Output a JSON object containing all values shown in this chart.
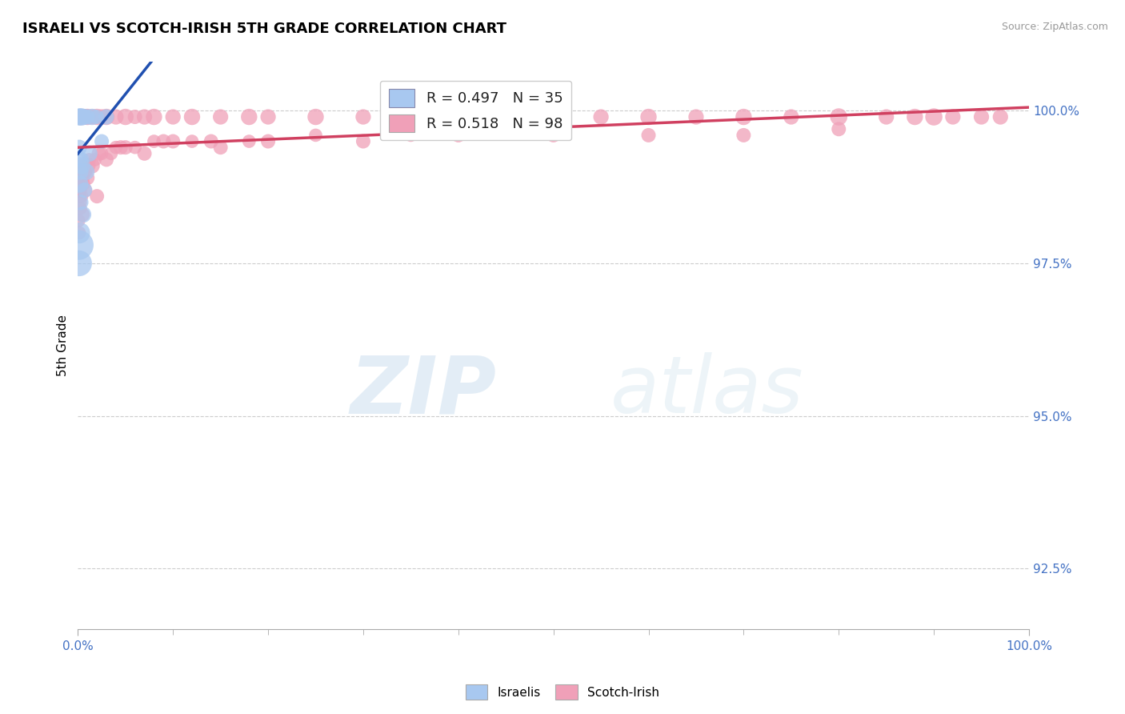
{
  "title": "ISRAELI VS SCOTCH-IRISH 5TH GRADE CORRELATION CHART",
  "source": "Source: ZipAtlas.com",
  "ylabel": "5th Grade",
  "xlim": [
    0.0,
    100.0
  ],
  "ylim": [
    91.5,
    100.8
  ],
  "yticks": [
    92.5,
    95.0,
    97.5,
    100.0
  ],
  "ytick_labels": [
    "92.5%",
    "95.0%",
    "97.5%",
    "100.0%"
  ],
  "blue_color": "#A8C8F0",
  "pink_color": "#F0A0B8",
  "blue_line_color": "#2050B0",
  "pink_line_color": "#D04060",
  "legend_R_blue": "R = 0.497",
  "legend_N_blue": "N = 35",
  "legend_R_pink": "R = 0.518",
  "legend_N_pink": "N = 98",
  "watermark_zip": "ZIP",
  "watermark_atlas": "atlas",
  "israelis_x": [
    0.05,
    0.08,
    0.1,
    0.12,
    0.15,
    0.18,
    0.2,
    0.22,
    0.25,
    0.28,
    0.3,
    0.35,
    0.4,
    0.5,
    0.6,
    0.8,
    1.0,
    1.5,
    2.0,
    3.0,
    0.1,
    0.15,
    0.2,
    0.25,
    0.3,
    0.4,
    0.55,
    0.7,
    1.2,
    2.5,
    0.08,
    0.12,
    0.18,
    0.35,
    0.9
  ],
  "israelis_y": [
    99.9,
    99.9,
    99.9,
    99.9,
    99.9,
    99.9,
    99.9,
    99.9,
    99.9,
    99.9,
    99.9,
    99.9,
    99.9,
    99.9,
    99.9,
    99.9,
    99.9,
    99.9,
    99.9,
    99.9,
    99.2,
    99.4,
    98.8,
    99.0,
    98.5,
    99.1,
    98.3,
    98.7,
    99.3,
    99.5,
    97.8,
    97.5,
    98.0,
    99.2,
    99.0
  ],
  "israelis_size": [
    15,
    12,
    18,
    14,
    16,
    12,
    20,
    14,
    16,
    12,
    18,
    20,
    16,
    14,
    18,
    14,
    16,
    18,
    14,
    16,
    18,
    16,
    20,
    18,
    16,
    20,
    18,
    16,
    18,
    14,
    60,
    45,
    30,
    16,
    18
  ],
  "scotch_x": [
    0.05,
    0.08,
    0.1,
    0.12,
    0.15,
    0.18,
    0.2,
    0.25,
    0.3,
    0.35,
    0.4,
    0.5,
    0.6,
    0.7,
    0.8,
    0.9,
    1.0,
    1.2,
    1.5,
    2.0,
    2.5,
    3.0,
    4.0,
    5.0,
    6.0,
    7.0,
    8.0,
    10.0,
    12.0,
    15.0,
    18.0,
    20.0,
    25.0,
    30.0,
    35.0,
    40.0,
    45.0,
    50.0,
    55.0,
    60.0,
    65.0,
    70.0,
    75.0,
    80.0,
    85.0,
    88.0,
    90.0,
    92.0,
    95.0,
    97.0,
    0.1,
    0.2,
    0.3,
    0.5,
    0.7,
    1.0,
    1.5,
    2.0,
    3.0,
    5.0,
    7.0,
    10.0,
    15.0,
    20.0,
    30.0,
    40.0,
    50.0,
    60.0,
    70.0,
    80.0,
    0.08,
    0.15,
    0.25,
    0.4,
    0.6,
    0.8,
    1.2,
    2.5,
    4.0,
    8.0,
    12.0,
    18.0,
    25.0,
    35.0,
    0.35,
    0.55,
    0.75,
    1.8,
    3.5,
    6.0,
    0.12,
    0.22,
    0.45,
    1.1,
    2.2,
    4.5,
    9.0,
    14.0
  ],
  "scotch_y": [
    99.9,
    99.9,
    99.9,
    99.9,
    99.9,
    99.9,
    99.9,
    99.9,
    99.9,
    99.9,
    99.9,
    99.9,
    99.9,
    99.9,
    99.9,
    99.9,
    99.9,
    99.9,
    99.9,
    99.9,
    99.9,
    99.9,
    99.9,
    99.9,
    99.9,
    99.9,
    99.9,
    99.9,
    99.9,
    99.9,
    99.9,
    99.9,
    99.9,
    99.9,
    99.9,
    99.9,
    99.9,
    99.9,
    99.9,
    99.9,
    99.9,
    99.9,
    99.9,
    99.9,
    99.9,
    99.9,
    99.9,
    99.9,
    99.9,
    99.9,
    98.8,
    98.5,
    99.0,
    98.3,
    98.7,
    98.9,
    99.1,
    98.6,
    99.2,
    99.4,
    99.3,
    99.5,
    99.4,
    99.5,
    99.5,
    99.6,
    99.6,
    99.6,
    99.6,
    99.7,
    98.2,
    98.0,
    98.4,
    98.6,
    98.8,
    99.0,
    99.2,
    99.3,
    99.4,
    99.5,
    99.5,
    99.5,
    99.6,
    99.6,
    99.1,
    98.9,
    99.0,
    99.2,
    99.3,
    99.4,
    98.6,
    98.7,
    98.9,
    99.1,
    99.3,
    99.4,
    99.5,
    99.5
  ],
  "scotch_size": [
    15,
    12,
    16,
    14,
    16,
    12,
    18,
    14,
    16,
    12,
    16,
    18,
    14,
    16,
    14,
    16,
    18,
    14,
    16,
    18,
    16,
    18,
    16,
    18,
    14,
    16,
    18,
    16,
    18,
    16,
    18,
    16,
    18,
    16,
    18,
    20,
    16,
    18,
    16,
    18,
    16,
    18,
    16,
    20,
    16,
    18,
    20,
    16,
    16,
    16,
    16,
    14,
    16,
    14,
    16,
    14,
    16,
    14,
    14,
    14,
    14,
    14,
    14,
    14,
    14,
    14,
    14,
    14,
    14,
    14,
    12,
    12,
    12,
    12,
    12,
    12,
    12,
    12,
    12,
    12,
    12,
    12,
    12,
    12,
    12,
    12,
    12,
    12,
    12,
    12,
    14,
    14,
    14,
    14,
    14,
    14,
    14,
    14
  ]
}
